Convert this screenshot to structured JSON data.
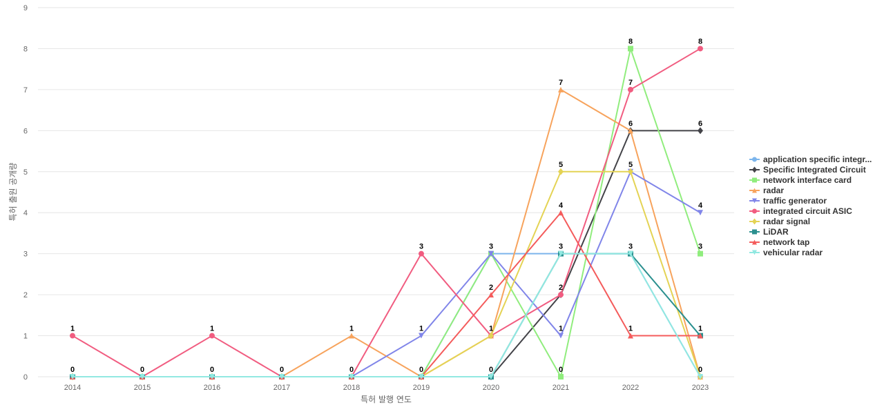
{
  "chart_data": {
    "type": "line",
    "title": "",
    "xlabel": "특허 발행 연도",
    "ylabel": "특허 출원 공개량",
    "categories": [
      "2014",
      "2015",
      "2016",
      "2017",
      "2018",
      "2019",
      "2020",
      "2021",
      "2022",
      "2023"
    ],
    "ylim": [
      0,
      9
    ],
    "yticks": [
      "0",
      "1",
      "2",
      "3",
      "4",
      "5",
      "6",
      "7",
      "8",
      "9"
    ],
    "grid": true,
    "legend_position": "right",
    "series": [
      {
        "name": "application specific integr...",
        "color": "#7cb5ec",
        "marker": "circle",
        "values": [
          0,
          0,
          0,
          0,
          0,
          0,
          3,
          3,
          3,
          0
        ]
      },
      {
        "name": "Specific Integrated Circuit",
        "color": "#434348",
        "marker": "diamond",
        "values": [
          0,
          0,
          0,
          0,
          0,
          0,
          0,
          2,
          6,
          6
        ]
      },
      {
        "name": "network interface card",
        "color": "#90ed7d",
        "marker": "square",
        "values": [
          0,
          0,
          0,
          0,
          0,
          0,
          3,
          0,
          8,
          3
        ]
      },
      {
        "name": "radar",
        "color": "#f7a35c",
        "marker": "triangle",
        "values": [
          0,
          0,
          0,
          0,
          1,
          0,
          1,
          7,
          6,
          0
        ]
      },
      {
        "name": "traffic generator",
        "color": "#8085e9",
        "marker": "triangle-down",
        "values": [
          0,
          0,
          0,
          0,
          0,
          1,
          3,
          1,
          5,
          4
        ]
      },
      {
        "name": "integrated circuit ASIC",
        "color": "#f15c80",
        "marker": "circle",
        "values": [
          1,
          0,
          1,
          0,
          0,
          3,
          1,
          2,
          7,
          8
        ]
      },
      {
        "name": "radar signal",
        "color": "#e4d354",
        "marker": "diamond",
        "values": [
          0,
          0,
          0,
          0,
          0,
          0,
          1,
          5,
          5,
          0
        ]
      },
      {
        "name": "LiDAR",
        "color": "#2b908f",
        "marker": "square",
        "values": [
          0,
          0,
          0,
          0,
          0,
          0,
          0,
          3,
          3,
          1
        ]
      },
      {
        "name": "network tap",
        "color": "#f45b5b",
        "marker": "triangle",
        "values": [
          0,
          0,
          0,
          0,
          0,
          0,
          2,
          4,
          1,
          1
        ]
      },
      {
        "name": "vehicular radar",
        "color": "#91e8e1",
        "marker": "triangle-down",
        "values": [
          0,
          0,
          0,
          0,
          0,
          0,
          0,
          3,
          3,
          0
        ]
      }
    ],
    "data_labels": [
      {
        "cat": "2014",
        "value": 1,
        "text": "1"
      },
      {
        "cat": "2014",
        "value": 0,
        "text": "0"
      },
      {
        "cat": "2015",
        "value": 0,
        "text": "0"
      },
      {
        "cat": "2016",
        "value": 1,
        "text": "1"
      },
      {
        "cat": "2016",
        "value": 0,
        "text": "0"
      },
      {
        "cat": "2017",
        "value": 0,
        "text": "0"
      },
      {
        "cat": "2018",
        "value": 1,
        "text": "1"
      },
      {
        "cat": "2018",
        "value": 0,
        "text": "0"
      },
      {
        "cat": "2019",
        "value": 3,
        "text": "3"
      },
      {
        "cat": "2019",
        "value": 1,
        "text": "1"
      },
      {
        "cat": "2019",
        "value": 0,
        "text": "0"
      },
      {
        "cat": "2020",
        "value": 3,
        "text": "3"
      },
      {
        "cat": "2020",
        "value": 2,
        "text": "2"
      },
      {
        "cat": "2020",
        "value": 1,
        "text": "1"
      },
      {
        "cat": "2020",
        "value": 0,
        "text": "0"
      },
      {
        "cat": "2021",
        "value": 7,
        "text": "7"
      },
      {
        "cat": "2021",
        "value": 5,
        "text": "5"
      },
      {
        "cat": "2021",
        "value": 4,
        "text": "4"
      },
      {
        "cat": "2021",
        "value": 3,
        "text": "3"
      },
      {
        "cat": "2021",
        "value": 2,
        "text": "2"
      },
      {
        "cat": "2021",
        "value": 1,
        "text": "1"
      },
      {
        "cat": "2021",
        "value": 0,
        "text": "0"
      },
      {
        "cat": "2022",
        "value": 8,
        "text": "8"
      },
      {
        "cat": "2022",
        "value": 7,
        "text": "7"
      },
      {
        "cat": "2022",
        "value": 6,
        "text": "6"
      },
      {
        "cat": "2022",
        "value": 5,
        "text": "5"
      },
      {
        "cat": "2022",
        "value": 3,
        "text": "3"
      },
      {
        "cat": "2022",
        "value": 1,
        "text": "1"
      },
      {
        "cat": "2023",
        "value": 8,
        "text": "8"
      },
      {
        "cat": "2023",
        "value": 6,
        "text": "6"
      },
      {
        "cat": "2023",
        "value": 4,
        "text": "4"
      },
      {
        "cat": "2023",
        "value": 3,
        "text": "3"
      },
      {
        "cat": "2023",
        "value": 1,
        "text": "1"
      },
      {
        "cat": "2023",
        "value": 0,
        "text": "0"
      }
    ]
  }
}
